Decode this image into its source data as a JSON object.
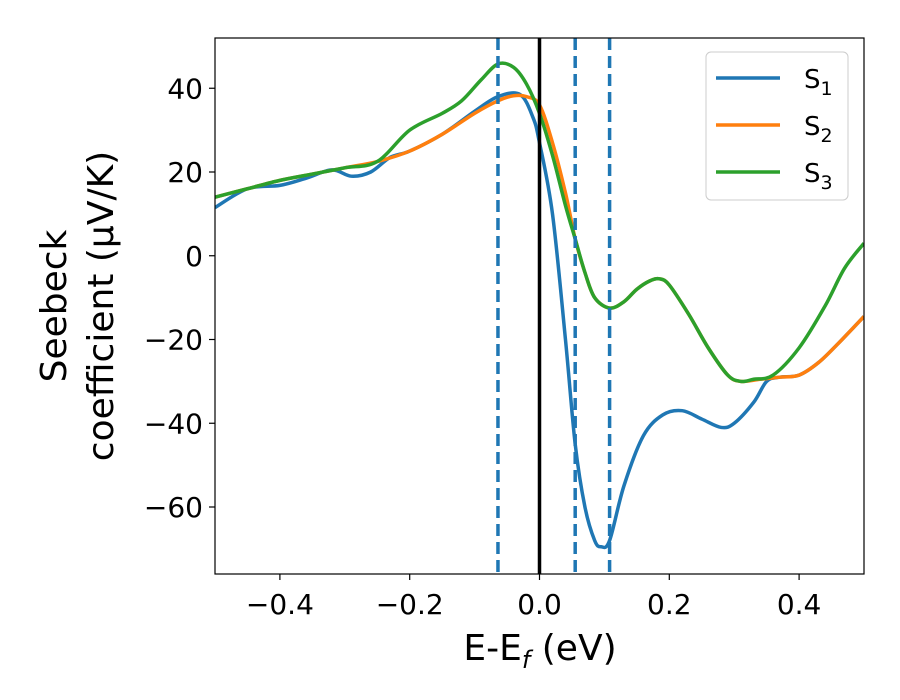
{
  "chart_data": {
    "type": "line",
    "xlabel": {
      "main": "E-E",
      "sub": "f",
      "unit": " (eV)"
    },
    "ylabel": {
      "line1": "Seebeck",
      "line2": "coefficient  (μV/K)"
    },
    "xlim": [
      -0.5,
      0.5
    ],
    "ylim": [
      -76,
      52
    ],
    "xticks": [
      -0.4,
      -0.2,
      0.0,
      0.2,
      0.4
    ],
    "xtick_labels": [
      "−0.4",
      "−0.2",
      "0.0",
      "0.2",
      "0.4"
    ],
    "yticks": [
      40,
      20,
      0,
      -20,
      -40,
      -60
    ],
    "ytick_labels": [
      "40",
      "20",
      "0",
      "−20",
      "−40",
      "−60"
    ],
    "legend_position": "top-right",
    "vlines": [
      {
        "x": -0.064,
        "style": "dashed",
        "color": "#1f77b4"
      },
      {
        "x": 0.0,
        "style": "solid",
        "color": "#000000"
      },
      {
        "x": 0.055,
        "style": "dashed",
        "color": "#1f77b4"
      },
      {
        "x": 0.108,
        "style": "dashed",
        "color": "#1f77b4"
      }
    ],
    "series": [
      {
        "name": "S",
        "sub": "1",
        "color": "#1f77b4",
        "points": [
          [
            -0.5,
            11.5
          ],
          [
            -0.45,
            16
          ],
          [
            -0.4,
            16.8
          ],
          [
            -0.36,
            18.5
          ],
          [
            -0.32,
            20.5
          ],
          [
            -0.29,
            19
          ],
          [
            -0.26,
            20
          ],
          [
            -0.23,
            23.5
          ],
          [
            -0.2,
            25
          ],
          [
            -0.15,
            29
          ],
          [
            -0.1,
            34.5
          ],
          [
            -0.064,
            38
          ],
          [
            -0.03,
            38.5
          ],
          [
            -0.01,
            33
          ],
          [
            0.0,
            27
          ],
          [
            0.02,
            10
          ],
          [
            0.04,
            -20
          ],
          [
            0.055,
            -45
          ],
          [
            0.07,
            -60
          ],
          [
            0.085,
            -68
          ],
          [
            0.095,
            -69.5
          ],
          [
            0.108,
            -68
          ],
          [
            0.13,
            -55
          ],
          [
            0.16,
            -43
          ],
          [
            0.19,
            -38
          ],
          [
            0.22,
            -37
          ],
          [
            0.25,
            -39
          ],
          [
            0.28,
            -41
          ],
          [
            0.3,
            -40
          ],
          [
            0.33,
            -35
          ],
          [
            0.35,
            -30
          ],
          [
            0.37,
            -29
          ],
          [
            0.4,
            -28.5
          ],
          [
            0.43,
            -25.5
          ],
          [
            0.46,
            -21
          ],
          [
            0.5,
            -14.5
          ]
        ]
      },
      {
        "name": "S",
        "sub": "2",
        "color": "#ff7f0e",
        "points": [
          [
            -0.5,
            14
          ],
          [
            -0.45,
            16
          ],
          [
            -0.4,
            18
          ],
          [
            -0.35,
            19.5
          ],
          [
            -0.3,
            21
          ],
          [
            -0.25,
            22.5
          ],
          [
            -0.2,
            25
          ],
          [
            -0.15,
            29
          ],
          [
            -0.1,
            34
          ],
          [
            -0.064,
            37
          ],
          [
            -0.04,
            38.2
          ],
          [
            -0.02,
            38
          ],
          [
            0.0,
            36
          ],
          [
            0.02,
            27
          ],
          [
            0.04,
            15
          ],
          [
            0.055,
            4
          ],
          [
            0.07,
            -4
          ],
          [
            0.085,
            -10
          ],
          [
            0.108,
            -12.5
          ],
          [
            0.13,
            -11
          ],
          [
            0.15,
            -8
          ],
          [
            0.17,
            -6
          ],
          [
            0.185,
            -5.5
          ],
          [
            0.2,
            -7
          ],
          [
            0.23,
            -14
          ],
          [
            0.26,
            -22
          ],
          [
            0.29,
            -28.5
          ],
          [
            0.31,
            -30
          ],
          [
            0.34,
            -29.5
          ],
          [
            0.37,
            -29
          ],
          [
            0.4,
            -28.5
          ],
          [
            0.43,
            -25.5
          ],
          [
            0.46,
            -21
          ],
          [
            0.5,
            -14.5
          ]
        ]
      },
      {
        "name": "S",
        "sub": "3",
        "color": "#2ca02c",
        "points": [
          [
            -0.5,
            14
          ],
          [
            -0.45,
            16
          ],
          [
            -0.4,
            18
          ],
          [
            -0.35,
            19.5
          ],
          [
            -0.3,
            21
          ],
          [
            -0.25,
            22.5
          ],
          [
            -0.2,
            30
          ],
          [
            -0.15,
            34
          ],
          [
            -0.12,
            37
          ],
          [
            -0.09,
            42
          ],
          [
            -0.064,
            45.8
          ],
          [
            -0.04,
            45
          ],
          [
            -0.02,
            41
          ],
          [
            0.0,
            34
          ],
          [
            0.02,
            24
          ],
          [
            0.04,
            12
          ],
          [
            0.055,
            4
          ],
          [
            0.07,
            -4
          ],
          [
            0.085,
            -10
          ],
          [
            0.108,
            -12.5
          ],
          [
            0.13,
            -11
          ],
          [
            0.15,
            -8
          ],
          [
            0.17,
            -6
          ],
          [
            0.185,
            -5.5
          ],
          [
            0.2,
            -7
          ],
          [
            0.23,
            -14
          ],
          [
            0.26,
            -22
          ],
          [
            0.29,
            -28.5
          ],
          [
            0.31,
            -30
          ],
          [
            0.33,
            -29.5
          ],
          [
            0.36,
            -28.5
          ],
          [
            0.4,
            -22
          ],
          [
            0.44,
            -12
          ],
          [
            0.47,
            -3
          ],
          [
            0.5,
            3
          ]
        ]
      }
    ]
  }
}
